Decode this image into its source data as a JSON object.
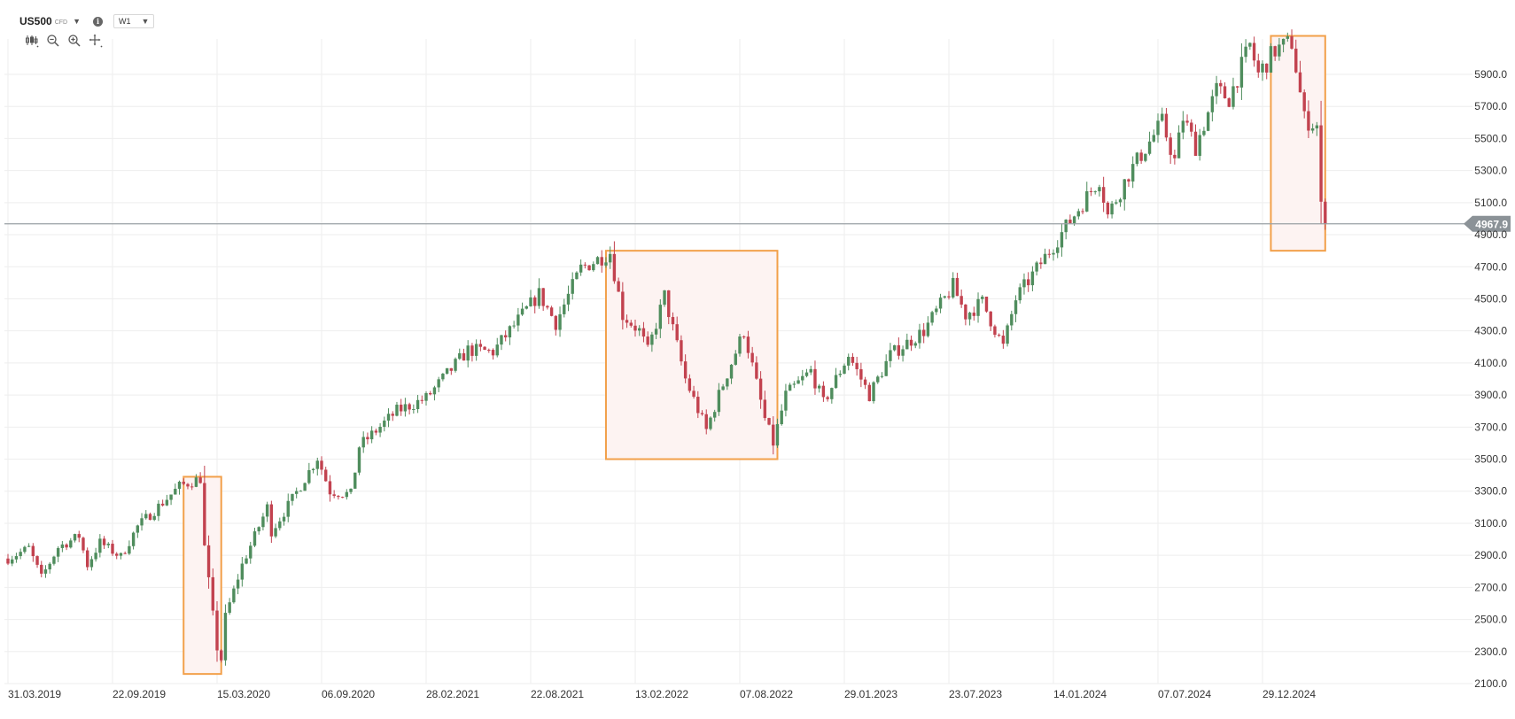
{
  "header": {
    "symbol": "US500",
    "badge": "CFD",
    "timeframe": "W1"
  },
  "toolbar": {
    "icons": [
      "candlestick-type-icon",
      "zoom-out-icon",
      "zoom-in-icon",
      "crosshair-icon"
    ]
  },
  "colors": {
    "up": "#4f8d5d",
    "down": "#c2424f",
    "highlight_box": "#f2a04a",
    "highlight_fill": "#fdf3f2",
    "price_line": "#9aa0a4",
    "price_tag": "#8b9297",
    "grid": "#eeeeee"
  },
  "chart_data": {
    "type": "candlestick",
    "timeframe": "W1",
    "instrument": "US500",
    "x_ticks": [
      "31.03.2019",
      "22.09.2019",
      "15.03.2020",
      "06.09.2020",
      "28.02.2021",
      "22.08.2021",
      "13.02.2022",
      "07.08.2022",
      "29.01.2023",
      "23.07.2023",
      "14.01.2024",
      "07.07.2024",
      "29.12.2024"
    ],
    "y_ticks": [
      "2100.0",
      "2300.0",
      "2500.0",
      "2700.0",
      "2900.0",
      "3100.0",
      "3300.0",
      "3500.0",
      "3700.0",
      "3900.0",
      "4100.0",
      "4300.0",
      "4500.0",
      "4700.0",
      "4900.0",
      "5100.0",
      "5300.0",
      "5500.0",
      "5700.0",
      "5900.0"
    ],
    "ylim": [
      2100,
      5900
    ],
    "grid": true,
    "current_price": "4967.9",
    "current_price_value": 4967.9,
    "x_start": "2019-03-31",
    "highlights": [
      {
        "from": "2020-01-19",
        "to": "2020-03-22",
        "low": 2160,
        "high": 3390
      },
      {
        "from": "2021-12-26",
        "to": "2022-10-09",
        "low": 3500,
        "high": 4800
      },
      {
        "from": "2025-01-12",
        "to": "2025-04-13",
        "low": 4800,
        "high": 6140
      }
    ],
    "series": [
      {
        "date": "2019-03-31",
        "close": 2880
      },
      {
        "date": "2019-05-05",
        "close": 2945
      },
      {
        "date": "2019-05-26",
        "close": 2760
      },
      {
        "date": "2019-06-23",
        "close": 2950
      },
      {
        "date": "2019-07-28",
        "close": 3020
      },
      {
        "date": "2019-08-11",
        "close": 2840
      },
      {
        "date": "2019-09-01",
        "close": 2980
      },
      {
        "date": "2019-10-06",
        "close": 2890
      },
      {
        "date": "2019-11-03",
        "close": 3080
      },
      {
        "date": "2020-01-12",
        "close": 3330
      },
      {
        "date": "2020-02-16",
        "close": 3380
      },
      {
        "date": "2020-02-23",
        "close": 2950
      },
      {
        "date": "2020-03-15",
        "close": 2320
      },
      {
        "date": "2020-03-22",
        "close": 2250
      },
      {
        "date": "2020-03-29",
        "close": 2520
      },
      {
        "date": "2020-04-26",
        "close": 2840
      },
      {
        "date": "2020-06-07",
        "close": 3200
      },
      {
        "date": "2020-06-14",
        "close": 3050
      },
      {
        "date": "2020-07-19",
        "close": 3250
      },
      {
        "date": "2020-08-30",
        "close": 3510
      },
      {
        "date": "2020-09-20",
        "close": 3300
      },
      {
        "date": "2020-10-25",
        "close": 3280
      },
      {
        "date": "2020-11-08",
        "close": 3580
      },
      {
        "date": "2021-01-10",
        "close": 3800
      },
      {
        "date": "2021-02-28",
        "close": 3880
      },
      {
        "date": "2021-05-09",
        "close": 4180
      },
      {
        "date": "2021-06-20",
        "close": 4170
      },
      {
        "date": "2021-09-05",
        "close": 4530
      },
      {
        "date": "2021-10-03",
        "close": 4350
      },
      {
        "date": "2021-11-14",
        "close": 4690
      },
      {
        "date": "2021-12-19",
        "close": 4760
      },
      {
        "date": "2022-01-02",
        "close": 4790
      },
      {
        "date": "2022-01-23",
        "close": 4400
      },
      {
        "date": "2022-02-20",
        "close": 4300
      },
      {
        "date": "2022-03-06",
        "close": 4170
      },
      {
        "date": "2022-04-03",
        "close": 4520
      },
      {
        "date": "2022-05-08",
        "close": 4000
      },
      {
        "date": "2022-06-12",
        "close": 3680
      },
      {
        "date": "2022-07-03",
        "close": 3900
      },
      {
        "date": "2022-08-14",
        "close": 4300
      },
      {
        "date": "2022-09-18",
        "close": 3750
      },
      {
        "date": "2022-10-02",
        "close": 3600
      },
      {
        "date": "2022-10-23",
        "close": 3900
      },
      {
        "date": "2022-12-04",
        "close": 4050
      },
      {
        "date": "2022-12-25",
        "close": 3850
      },
      {
        "date": "2023-02-05",
        "close": 4150
      },
      {
        "date": "2023-03-12",
        "close": 3900
      },
      {
        "date": "2023-04-16",
        "close": 4150
      },
      {
        "date": "2023-06-11",
        "close": 4300
      },
      {
        "date": "2023-07-30",
        "close": 4580
      },
      {
        "date": "2023-08-20",
        "close": 4400
      },
      {
        "date": "2023-09-17",
        "close": 4480
      },
      {
        "date": "2023-10-22",
        "close": 4200
      },
      {
        "date": "2023-11-12",
        "close": 4500
      },
      {
        "date": "2023-12-31",
        "close": 4760
      },
      {
        "date": "2024-03-31",
        "close": 5250
      },
      {
        "date": "2024-04-14",
        "close": 5020
      },
      {
        "date": "2024-05-19",
        "close": 5280
      },
      {
        "date": "2024-07-14",
        "close": 5600
      },
      {
        "date": "2024-08-04",
        "close": 5360
      },
      {
        "date": "2024-08-18",
        "close": 5630
      },
      {
        "date": "2024-09-08",
        "close": 5450
      },
      {
        "date": "2024-10-13",
        "close": 5800
      },
      {
        "date": "2024-11-03",
        "close": 5750
      },
      {
        "date": "2024-12-08",
        "close": 6080
      },
      {
        "date": "2024-12-22",
        "close": 5900
      },
      {
        "date": "2025-01-19",
        "close": 6050
      },
      {
        "date": "2025-02-16",
        "close": 6100
      },
      {
        "date": "2025-03-09",
        "close": 5620
      },
      {
        "date": "2025-03-30",
        "close": 5580
      },
      {
        "date": "2025-04-06",
        "close": 5070
      },
      {
        "date": "2025-04-13",
        "close": 4968
      }
    ]
  }
}
